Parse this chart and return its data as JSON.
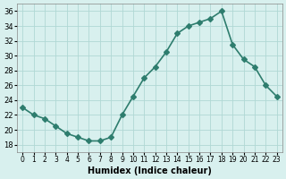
{
  "x": [
    0,
    1,
    2,
    3,
    4,
    5,
    6,
    7,
    8,
    9,
    10,
    11,
    12,
    13,
    14,
    15,
    16,
    17,
    18,
    19,
    20,
    21,
    22,
    23
  ],
  "y": [
    23,
    22,
    21.5,
    20.5,
    19.5,
    19,
    18.5,
    18.5,
    19,
    22,
    24.5,
    27,
    28.5,
    30.5,
    33,
    34,
    34.5,
    35,
    36,
    31.5,
    29.5,
    28.5,
    26,
    24.5
  ],
  "line_color": "#2e7d6e",
  "marker": "D",
  "marker_size": 3,
  "bg_color": "#d8f0ee",
  "grid_color": "#b0d8d4",
  "xlabel": "Humidex (Indice chaleur)",
  "ylabel": "",
  "ylim": [
    17,
    37
  ],
  "xlim": [
    -0.5,
    23.5
  ],
  "yticks": [
    18,
    20,
    22,
    24,
    26,
    28,
    30,
    32,
    34,
    36
  ],
  "xtick_labels": [
    "0",
    "1",
    "2",
    "3",
    "4",
    "5",
    "6",
    "7",
    "8",
    "9",
    "10",
    "11",
    "12",
    "13",
    "14",
    "15",
    "16",
    "17",
    "18",
    "19",
    "20",
    "21",
    "22",
    "23"
  ]
}
